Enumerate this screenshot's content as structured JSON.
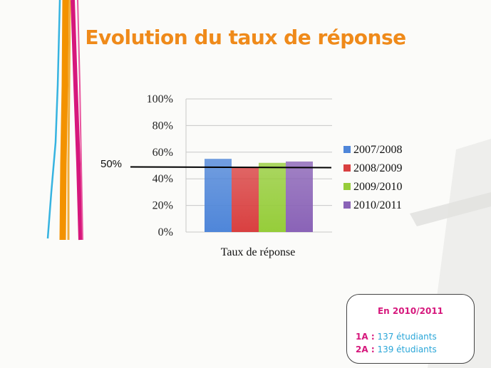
{
  "slide": {
    "title": "Evolution du taux de réponse",
    "title_color": "#ef8a1a",
    "reference_label": "50%"
  },
  "chart_data": {
    "type": "bar",
    "categories": [
      "Taux de réponse"
    ],
    "series": [
      {
        "name": "2007/2008",
        "values": [
          55
        ],
        "color": "#4f86d9"
      },
      {
        "name": "2008/2009",
        "values": [
          49
        ],
        "color": "#d94040"
      },
      {
        "name": "2009/2010",
        "values": [
          52
        ],
        "color": "#96cd3a"
      },
      {
        "name": "2010/2011",
        "values": [
          53
        ],
        "color": "#8a63b7"
      }
    ],
    "ylim": [
      0,
      100
    ],
    "yticks": [
      "0%",
      "20%",
      "40%",
      "60%",
      "80%",
      "100%"
    ],
    "reference_line": 50,
    "grid": true,
    "legend": "right"
  },
  "info_box": {
    "title": "En 2010/2011",
    "title_color": "#d6177c",
    "lines": [
      {
        "level": "1A :",
        "text": "137 étudiants"
      },
      {
        "level": "2A :",
        "text": "139 étudiants"
      }
    ],
    "level_color": "#d6177c",
    "text_color": "#2aa6d8"
  }
}
